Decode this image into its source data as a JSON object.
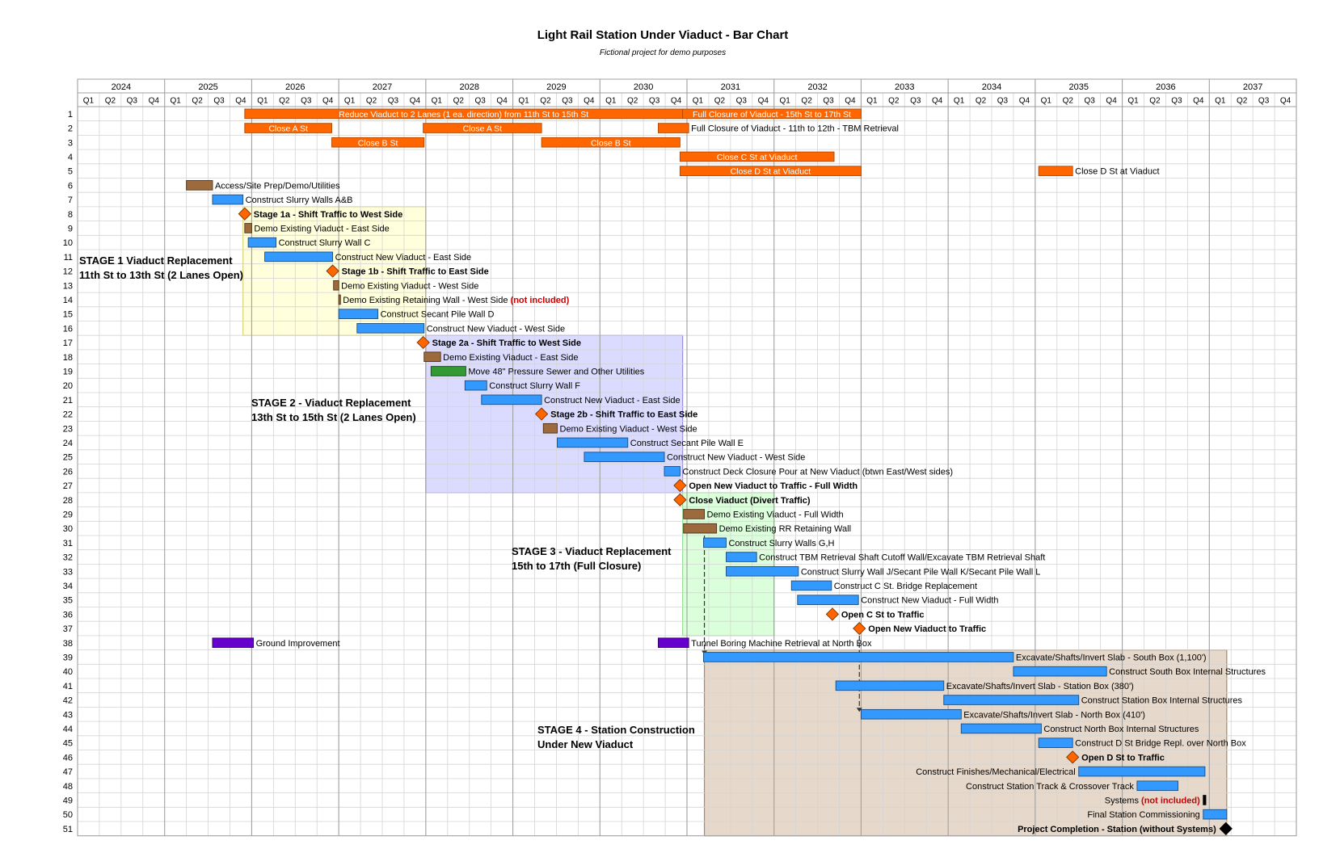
{
  "chart_data": {
    "type": "gantt",
    "title": "Light Rail Station Under Viaduct - Bar Chart",
    "subtitle": "Fictional project for demo purposes",
    "years": [
      "2024",
      "2025",
      "2026",
      "2027",
      "2028",
      "2029",
      "2030",
      "2031",
      "2032",
      "2033",
      "2034",
      "2035",
      "2036",
      "2037"
    ],
    "quarters": [
      "Q1",
      "Q2",
      "Q3",
      "Q4"
    ],
    "rows": 51,
    "timeline_start": 2024.0,
    "timeline_end": 2038.0,
    "colors": {
      "closure": "#ff6600",
      "demo": "#9c6a3c",
      "construct": "#3399ff",
      "utility": "#339933",
      "tbm": "#6600cc",
      "milestone": "#ff6600",
      "final": "#000000",
      "not_included": "#cc0000",
      "stage1": "#ffffcc",
      "stage2": "#ccccff",
      "stage3": "#ccffcc",
      "stage4": "#dcc8b4"
    },
    "stages": [
      {
        "key": "stage1",
        "label1": "STAGE 1 Viaduct Replacement",
        "label2": "11th St to 13th St (2 Lanes Open)",
        "start": 2025.9,
        "end": 2028.0,
        "row_start": 8,
        "row_end": 16
      },
      {
        "key": "stage2",
        "label1": "STAGE 2 - Viaduct Replacement",
        "label2": "13th St to 15th St (2 Lanes Open)",
        "start": 2028.0,
        "end": 2030.95,
        "row_start": 17,
        "row_end": 27
      },
      {
        "key": "stage3",
        "label1": "STAGE 3 - Viaduct Replacement",
        "label2": "15th to 17th (Full Closure)",
        "start": 2030.95,
        "end": 2032.0,
        "row_start": 28,
        "row_end": 37
      },
      {
        "key": "stage4",
        "label1": "STAGE 4 - Station Construction",
        "label2": "Under New Viaduct",
        "start": 2031.2,
        "end": 2037.2,
        "row_start": 39,
        "row_end": 51
      }
    ],
    "bars": [
      {
        "row": 1,
        "start": 2025.92,
        "end": 2030.95,
        "kind": "closure",
        "label": "Reduce Viaduct to 2 Lanes (1 ea. direction) from 11th St to 15th St",
        "pos": "inside"
      },
      {
        "row": 1,
        "start": 2030.95,
        "end": 2033.0,
        "kind": "closure",
        "label": "Full Closure of Viaduct - 15th St to 17th St",
        "pos": "inside"
      },
      {
        "row": 2,
        "start": 2025.92,
        "end": 2026.92,
        "kind": "closure",
        "label": "Close A St",
        "pos": "inside"
      },
      {
        "row": 2,
        "start": 2027.97,
        "end": 2029.33,
        "kind": "closure",
        "label": "Close A St",
        "pos": "inside"
      },
      {
        "row": 2,
        "start": 2030.67,
        "end": 2031.02,
        "kind": "closure",
        "label": "Full Closure of Viaduct - 11th to 12th - TBM Retrieval",
        "pos": "right"
      },
      {
        "row": 3,
        "start": 2026.92,
        "end": 2027.98,
        "kind": "closure",
        "label": "Close B St",
        "pos": "inside"
      },
      {
        "row": 3,
        "start": 2029.33,
        "end": 2030.92,
        "kind": "closure",
        "label": "Close B St",
        "pos": "inside"
      },
      {
        "row": 4,
        "start": 2030.92,
        "end": 2032.69,
        "kind": "closure",
        "label": "Close C St at Viaduct",
        "pos": "inside"
      },
      {
        "row": 5,
        "start": 2030.92,
        "end": 2033.0,
        "kind": "closure",
        "label": "Close D St at Viaduct",
        "pos": "inside"
      },
      {
        "row": 5,
        "start": 2035.04,
        "end": 2035.43,
        "kind": "closure",
        "label": "Close D St at Viaduct",
        "pos": "right"
      },
      {
        "row": 6,
        "start": 2025.25,
        "end": 2025.55,
        "kind": "demo",
        "label": "Access/Site Prep/Demo/Utilities",
        "pos": "right"
      },
      {
        "row": 7,
        "start": 2025.55,
        "end": 2025.9,
        "kind": "construct",
        "label": "Construct Slurry Walls A&B",
        "pos": "right"
      },
      {
        "row": 9,
        "start": 2025.92,
        "end": 2026.0,
        "kind": "demo",
        "label": "Demo Existing Viaduct - East Side",
        "pos": "right"
      },
      {
        "row": 10,
        "start": 2025.96,
        "end": 2026.28,
        "kind": "construct",
        "label": "Construct Slurry Wall C",
        "pos": "right"
      },
      {
        "row": 11,
        "start": 2026.15,
        "end": 2026.93,
        "kind": "construct",
        "label": "Construct New Viaduct - East Side",
        "pos": "right"
      },
      {
        "row": 13,
        "start": 2026.94,
        "end": 2027.0,
        "kind": "demo",
        "label": "Demo Existing Viaduct - West Side",
        "pos": "right"
      },
      {
        "row": 14,
        "start": 2027.0,
        "end": 2027.02,
        "kind": "demo",
        "label": "Demo Existing Retaining Wall - West Side",
        "extra": "(not included)",
        "pos": "right"
      },
      {
        "row": 15,
        "start": 2027.0,
        "end": 2027.45,
        "kind": "construct",
        "label": "Construct Secant Pile Wall D",
        "pos": "right"
      },
      {
        "row": 16,
        "start": 2027.21,
        "end": 2027.98,
        "kind": "construct",
        "label": "Construct New Viaduct - West Side",
        "pos": "right"
      },
      {
        "row": 18,
        "start": 2027.98,
        "end": 2028.17,
        "kind": "demo",
        "label": "Demo Existing Viaduct - East Side",
        "pos": "right"
      },
      {
        "row": 19,
        "start": 2028.06,
        "end": 2028.46,
        "kind": "utility",
        "label": "Move 48\" Pressure Sewer and Other Utilities",
        "pos": "right"
      },
      {
        "row": 20,
        "start": 2028.45,
        "end": 2028.7,
        "kind": "construct",
        "label": "Construct Slurry Wall F",
        "pos": "right"
      },
      {
        "row": 21,
        "start": 2028.64,
        "end": 2029.33,
        "kind": "construct",
        "label": "Construct New Viaduct - East Side",
        "pos": "right"
      },
      {
        "row": 23,
        "start": 2029.35,
        "end": 2029.51,
        "kind": "demo",
        "label": "Demo Existing Viaduct - West Side",
        "pos": "right"
      },
      {
        "row": 24,
        "start": 2029.51,
        "end": 2030.32,
        "kind": "construct",
        "label": "Construct Secant Pile Wall E",
        "pos": "right"
      },
      {
        "row": 25,
        "start": 2029.82,
        "end": 2030.74,
        "kind": "construct",
        "label": "Construct New Viaduct - West Side",
        "pos": "right"
      },
      {
        "row": 26,
        "start": 2030.74,
        "end": 2030.92,
        "kind": "construct",
        "label": "Construct Deck Closure Pour at New Viaduct (btwn East/West sides)",
        "pos": "right"
      },
      {
        "row": 29,
        "start": 2030.96,
        "end": 2031.2,
        "kind": "demo",
        "label": "Demo Existing Viaduct - Full Width",
        "pos": "right"
      },
      {
        "row": 30,
        "start": 2030.96,
        "end": 2031.34,
        "kind": "demo",
        "label": "Demo Existing RR Retaining Wall",
        "pos": "right"
      },
      {
        "row": 31,
        "start": 2031.19,
        "end": 2031.45,
        "kind": "construct",
        "label": "Construct Slurry Walls G,H",
        "pos": "right"
      },
      {
        "row": 32,
        "start": 2031.45,
        "end": 2031.8,
        "kind": "construct",
        "label": "Construct TBM Retrieval Shaft Cutoff Wall/Excavate TBM Retrieval Shaft",
        "pos": "right"
      },
      {
        "row": 33,
        "start": 2031.45,
        "end": 2032.28,
        "kind": "construct",
        "label": "Construct Slurry Wall J/Secant Pile Wall K/Secant Pile Wall L",
        "pos": "right"
      },
      {
        "row": 34,
        "start": 2032.2,
        "end": 2032.66,
        "kind": "construct",
        "label": "Construct C St. Bridge Replacement",
        "pos": "right"
      },
      {
        "row": 35,
        "start": 2032.27,
        "end": 2032.97,
        "kind": "construct",
        "label": "Construct New Viaduct - Full Width",
        "pos": "right"
      },
      {
        "row": 38,
        "start": 2025.55,
        "end": 2026.02,
        "kind": "tbm",
        "label": "Ground Improvement",
        "pos": "right"
      },
      {
        "row": 38,
        "start": 2030.67,
        "end": 2031.02,
        "kind": "tbm",
        "label": "Tunnel Boring Machine Retrieval at North Box",
        "pos": "right"
      },
      {
        "row": 39,
        "start": 2031.19,
        "end": 2034.75,
        "kind": "construct",
        "label": "Excavate/Shafts/Invert Slab - South Box (1,100')",
        "pos": "right"
      },
      {
        "row": 40,
        "start": 2034.75,
        "end": 2035.82,
        "kind": "construct",
        "label": "Construct South Box Internal Structures",
        "pos": "right"
      },
      {
        "row": 41,
        "start": 2032.71,
        "end": 2033.95,
        "kind": "construct",
        "label": "Excavate/Shafts/Invert Slab - Station Box (380')",
        "pos": "right"
      },
      {
        "row": 42,
        "start": 2033.95,
        "end": 2035.5,
        "kind": "construct",
        "label": "Construct Station Box Internal Structures",
        "pos": "right"
      },
      {
        "row": 43,
        "start": 2033.0,
        "end": 2034.15,
        "kind": "construct",
        "label": "Excavate/Shafts/Invert Slab - North Box (410')",
        "pos": "right"
      },
      {
        "row": 44,
        "start": 2034.15,
        "end": 2035.07,
        "kind": "construct",
        "label": "Construct North Box Internal Structures",
        "pos": "right"
      },
      {
        "row": 45,
        "start": 2035.04,
        "end": 2035.43,
        "kind": "construct",
        "label": "Construct D St Bridge Repl. over North Box",
        "pos": "right"
      },
      {
        "row": 47,
        "start": 2035.5,
        "end": 2036.95,
        "kind": "construct",
        "label": "Construct Finishes/Mechanical/Electrical",
        "pos": "left"
      },
      {
        "row": 48,
        "start": 2036.17,
        "end": 2036.64,
        "kind": "construct",
        "label": "Construct Station Track & Crossover Track",
        "pos": "left"
      },
      {
        "row": 49,
        "start": 2036.93,
        "end": 2036.96,
        "kind": "final",
        "label": "Systems",
        "extra": "(not included)",
        "pos": "left"
      },
      {
        "row": 50,
        "start": 2036.93,
        "end": 2037.2,
        "kind": "construct",
        "label": "Final Station Commissioning",
        "pos": "left"
      }
    ],
    "milestones": [
      {
        "row": 8,
        "date": 2025.92,
        "label": "Stage 1a - Shift Traffic to West Side",
        "pos": "right"
      },
      {
        "row": 12,
        "date": 2026.93,
        "label": "Stage 1b - Shift Traffic to East Side",
        "pos": "right"
      },
      {
        "row": 17,
        "date": 2027.97,
        "label": "Stage 2a - Shift Traffic to West Side",
        "pos": "right"
      },
      {
        "row": 22,
        "date": 2029.33,
        "label": "Stage 2b - Shift Traffic to East Side",
        "pos": "right"
      },
      {
        "row": 27,
        "date": 2030.92,
        "label": "Open New Viaduct to Traffic - Full Width",
        "pos": "right"
      },
      {
        "row": 28,
        "date": 2030.92,
        "label": "Close Viaduct (Divert Traffic)",
        "pos": "right"
      },
      {
        "row": 36,
        "date": 2032.67,
        "label": "Open C St to Traffic",
        "pos": "right"
      },
      {
        "row": 37,
        "date": 2032.98,
        "label": "Open New Viaduct to Traffic",
        "pos": "right"
      },
      {
        "row": 46,
        "date": 2035.43,
        "label": "Open D St to Traffic",
        "pos": "right"
      },
      {
        "row": 51,
        "date": 2037.19,
        "label": "Project Completion - Station (without Systems)",
        "pos": "left",
        "final": true
      }
    ],
    "dependencies": [
      {
        "date": 2031.2,
        "from_row": 30,
        "to_row": 39
      },
      {
        "date": 2032.98,
        "from_row": 37,
        "to_row": 43
      }
    ]
  }
}
